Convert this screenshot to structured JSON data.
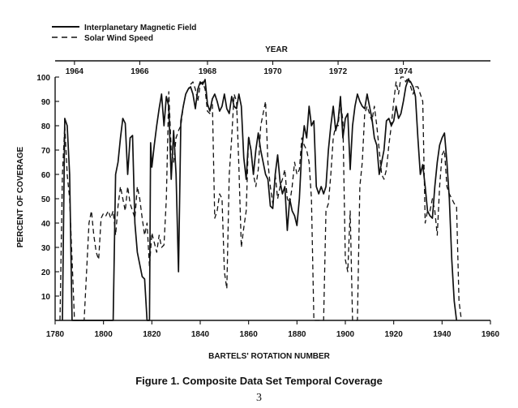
{
  "figure": {
    "caption": "Figure 1.  Composite Data Set Temporal Coverage",
    "page_number": "3"
  },
  "chart_data": {
    "type": "line",
    "xlabel": "BARTELS' ROTATION NUMBER",
    "ylabel": "PERCENT OF COVERAGE",
    "top_axis_title": "YEAR",
    "xlim": [
      1780,
      1960
    ],
    "ylim": [
      0,
      100
    ],
    "x_ticks": [
      1780,
      1800,
      1820,
      1840,
      1860,
      1880,
      1900,
      1920,
      1940,
      1960
    ],
    "y_ticks": [
      10,
      20,
      30,
      40,
      50,
      60,
      70,
      80,
      90,
      100
    ],
    "year_ticks": [
      {
        "label": "1964",
        "x": 1788
      },
      {
        "label": "1966",
        "x": 1815
      },
      {
        "label": "1968",
        "x": 1843
      },
      {
        "label": "1970",
        "x": 1870
      },
      {
        "label": "1972",
        "x": 1897
      },
      {
        "label": "1974",
        "x": 1924
      }
    ],
    "grid": false,
    "legend_position": "top-left",
    "series": [
      {
        "name": "Interplanetary Magnetic Field",
        "style": "solid",
        "points": [
          [
            1783,
            0
          ],
          [
            1784,
            83
          ],
          [
            1785,
            80
          ],
          [
            1786,
            60
          ],
          [
            1787,
            0
          ],
          [
            1804,
            0
          ],
          [
            1805,
            60
          ],
          [
            1806,
            65
          ],
          [
            1807,
            75
          ],
          [
            1808,
            83
          ],
          [
            1809,
            81
          ],
          [
            1810,
            60
          ],
          [
            1811,
            75
          ],
          [
            1812,
            76
          ],
          [
            1813,
            40
          ],
          [
            1814,
            28
          ],
          [
            1815,
            23
          ],
          [
            1816,
            18
          ],
          [
            1817,
            17
          ],
          [
            1818,
            0
          ],
          [
            1819,
            0
          ],
          [
            1819.5,
            73
          ],
          [
            1820,
            63
          ],
          [
            1821,
            72
          ],
          [
            1822,
            80
          ],
          [
            1823,
            87
          ],
          [
            1824,
            93
          ],
          [
            1825,
            80
          ],
          [
            1826,
            92
          ],
          [
            1827,
            88
          ],
          [
            1828,
            58
          ],
          [
            1829,
            78
          ],
          [
            1830,
            60
          ],
          [
            1831,
            20
          ],
          [
            1832,
            82
          ],
          [
            1833,
            88
          ],
          [
            1834,
            93
          ],
          [
            1835,
            95
          ],
          [
            1836,
            96
          ],
          [
            1837,
            93
          ],
          [
            1838,
            87
          ],
          [
            1839,
            95
          ],
          [
            1840,
            98
          ],
          [
            1841,
            97
          ],
          [
            1842,
            99
          ],
          [
            1843,
            89
          ],
          [
            1844,
            86
          ],
          [
            1845,
            91
          ],
          [
            1846,
            93
          ],
          [
            1847,
            90
          ],
          [
            1848,
            86
          ],
          [
            1849,
            88
          ],
          [
            1850,
            93
          ],
          [
            1851,
            87
          ],
          [
            1852,
            85
          ],
          [
            1853,
            92
          ],
          [
            1854,
            88
          ],
          [
            1855,
            87
          ],
          [
            1856,
            93
          ],
          [
            1857,
            88
          ],
          [
            1858,
            67
          ],
          [
            1859,
            58
          ],
          [
            1860,
            75
          ],
          [
            1861,
            70
          ],
          [
            1862,
            60
          ],
          [
            1863,
            70
          ],
          [
            1864,
            77
          ],
          [
            1865,
            70
          ],
          [
            1866,
            65
          ],
          [
            1867,
            60
          ],
          [
            1868,
            58
          ],
          [
            1869,
            47
          ],
          [
            1870,
            46
          ],
          [
            1871,
            60
          ],
          [
            1872,
            68
          ],
          [
            1873,
            57
          ],
          [
            1874,
            52
          ],
          [
            1875,
            55
          ],
          [
            1876,
            37
          ],
          [
            1877,
            50
          ],
          [
            1878,
            45
          ],
          [
            1879,
            43
          ],
          [
            1880,
            39
          ],
          [
            1881,
            50
          ],
          [
            1882,
            70
          ],
          [
            1883,
            80
          ],
          [
            1884,
            75
          ],
          [
            1885,
            88
          ],
          [
            1886,
            80
          ],
          [
            1887,
            82
          ],
          [
            1888,
            55
          ],
          [
            1889,
            52
          ],
          [
            1890,
            55
          ],
          [
            1891,
            52
          ],
          [
            1892,
            55
          ],
          [
            1893,
            70
          ],
          [
            1894,
            80
          ],
          [
            1895,
            88
          ],
          [
            1896,
            78
          ],
          [
            1897,
            82
          ],
          [
            1898,
            92
          ],
          [
            1899,
            75
          ],
          [
            1900,
            83
          ],
          [
            1901,
            85
          ],
          [
            1902,
            62
          ],
          [
            1903,
            80
          ],
          [
            1904,
            88
          ],
          [
            1905,
            93
          ],
          [
            1906,
            90
          ],
          [
            1907,
            88
          ],
          [
            1908,
            87
          ],
          [
            1909,
            93
          ],
          [
            1910,
            88
          ],
          [
            1911,
            83
          ],
          [
            1912,
            75
          ],
          [
            1913,
            72
          ],
          [
            1914,
            60
          ],
          [
            1915,
            65
          ],
          [
            1916,
            70
          ],
          [
            1917,
            82
          ],
          [
            1918,
            83
          ],
          [
            1919,
            80
          ],
          [
            1920,
            82
          ],
          [
            1921,
            88
          ],
          [
            1922,
            83
          ],
          [
            1923,
            85
          ],
          [
            1924,
            90
          ],
          [
            1925,
            96
          ],
          [
            1926,
            99
          ],
          [
            1927,
            98
          ],
          [
            1928,
            96
          ],
          [
            1929,
            92
          ],
          [
            1930,
            75
          ],
          [
            1931,
            60
          ],
          [
            1932,
            64
          ],
          [
            1933,
            55
          ],
          [
            1934,
            45
          ],
          [
            1935,
            43
          ],
          [
            1936,
            42
          ],
          [
            1937,
            55
          ],
          [
            1938,
            65
          ],
          [
            1939,
            72
          ],
          [
            1940,
            75
          ],
          [
            1941,
            77
          ],
          [
            1942,
            65
          ],
          [
            1943,
            50
          ],
          [
            1944,
            25
          ],
          [
            1945,
            8
          ],
          [
            1946,
            0
          ]
        ]
      },
      {
        "name": "Solar Wind Speed",
        "style": "dashed",
        "points": [
          [
            1782,
            0
          ],
          [
            1783,
            60
          ],
          [
            1784,
            80
          ],
          [
            1785,
            60
          ],
          [
            1786,
            50
          ],
          [
            1787,
            25
          ],
          [
            1788,
            0
          ],
          [
            1792,
            0
          ],
          [
            1793,
            20
          ],
          [
            1794,
            40
          ],
          [
            1795,
            45
          ],
          [
            1796,
            35
          ],
          [
            1797,
            28
          ],
          [
            1798,
            25
          ],
          [
            1799,
            42
          ],
          [
            1800,
            44
          ],
          [
            1801,
            43
          ],
          [
            1802,
            45
          ],
          [
            1803,
            42
          ],
          [
            1804,
            45
          ],
          [
            1805,
            35
          ],
          [
            1806,
            47
          ],
          [
            1807,
            55
          ],
          [
            1808,
            50
          ],
          [
            1809,
            45
          ],
          [
            1810,
            55
          ],
          [
            1811,
            48
          ],
          [
            1812,
            45
          ],
          [
            1813,
            42
          ],
          [
            1814,
            55
          ],
          [
            1815,
            50
          ],
          [
            1816,
            42
          ],
          [
            1817,
            35
          ],
          [
            1818,
            40
          ],
          [
            1819,
            22
          ],
          [
            1820,
            36
          ],
          [
            1821,
            32
          ],
          [
            1822,
            28
          ],
          [
            1823,
            35
          ],
          [
            1824,
            30
          ],
          [
            1825,
            31
          ],
          [
            1826,
            50
          ],
          [
            1827,
            94
          ],
          [
            1828,
            70
          ],
          [
            1829,
            65
          ],
          [
            1830,
            75
          ],
          [
            1831,
            78
          ],
          [
            1832,
            80
          ],
          [
            1833,
            88
          ],
          [
            1834,
            93
          ],
          [
            1835,
            95
          ],
          [
            1836,
            97
          ],
          [
            1837,
            98
          ],
          [
            1838,
            95
          ],
          [
            1839,
            90
          ],
          [
            1840,
            97
          ],
          [
            1841,
            98
          ],
          [
            1842,
            95
          ],
          [
            1843,
            86
          ],
          [
            1844,
            85
          ],
          [
            1845,
            91
          ],
          [
            1846,
            42
          ],
          [
            1847,
            45
          ],
          [
            1848,
            52
          ],
          [
            1849,
            50
          ],
          [
            1850,
            20
          ],
          [
            1851,
            13
          ],
          [
            1852,
            60
          ],
          [
            1853,
            75
          ],
          [
            1854,
            93
          ],
          [
            1855,
            90
          ],
          [
            1856,
            63
          ],
          [
            1857,
            30
          ],
          [
            1858,
            38
          ],
          [
            1859,
            45
          ],
          [
            1860,
            76
          ],
          [
            1861,
            70
          ],
          [
            1862,
            60
          ],
          [
            1863,
            55
          ],
          [
            1864,
            62
          ],
          [
            1865,
            80
          ],
          [
            1866,
            85
          ],
          [
            1867,
            90
          ],
          [
            1868,
            65
          ],
          [
            1869,
            55
          ],
          [
            1870,
            48
          ],
          [
            1871,
            60
          ],
          [
            1872,
            50
          ],
          [
            1873,
            55
          ],
          [
            1874,
            58
          ],
          [
            1875,
            62
          ],
          [
            1876,
            50
          ],
          [
            1877,
            48
          ],
          [
            1878,
            55
          ],
          [
            1879,
            65
          ],
          [
            1880,
            60
          ],
          [
            1881,
            62
          ],
          [
            1882,
            75
          ],
          [
            1883,
            72
          ],
          [
            1884,
            70
          ],
          [
            1885,
            65
          ],
          [
            1886,
            50
          ],
          [
            1887,
            0
          ],
          [
            1891,
            0
          ],
          [
            1892,
            45
          ],
          [
            1893,
            48
          ],
          [
            1894,
            60
          ],
          [
            1895,
            75
          ],
          [
            1896,
            80
          ],
          [
            1897,
            80
          ],
          [
            1898,
            90
          ],
          [
            1899,
            82
          ],
          [
            1900,
            25
          ],
          [
            1901,
            20
          ],
          [
            1902,
            45
          ],
          [
            1903,
            0
          ],
          [
            1905,
            0
          ],
          [
            1906,
            55
          ],
          [
            1907,
            65
          ],
          [
            1908,
            85
          ],
          [
            1909,
            88
          ],
          [
            1910,
            85
          ],
          [
            1911,
            82
          ],
          [
            1912,
            88
          ],
          [
            1913,
            80
          ],
          [
            1914,
            70
          ],
          [
            1915,
            60
          ],
          [
            1916,
            58
          ],
          [
            1917,
            62
          ],
          [
            1918,
            72
          ],
          [
            1919,
            80
          ],
          [
            1920,
            90
          ],
          [
            1921,
            98
          ],
          [
            1922,
            93
          ],
          [
            1923,
            100
          ],
          [
            1924,
            100
          ],
          [
            1925,
            98
          ],
          [
            1926,
            100
          ],
          [
            1927,
            96
          ],
          [
            1928,
            93
          ],
          [
            1929,
            96
          ],
          [
            1930,
            96
          ],
          [
            1931,
            93
          ],
          [
            1932,
            90
          ],
          [
            1933,
            40
          ],
          [
            1934,
            45
          ],
          [
            1935,
            45
          ],
          [
            1936,
            50
          ],
          [
            1937,
            45
          ],
          [
            1938,
            35
          ],
          [
            1939,
            55
          ],
          [
            1940,
            68
          ],
          [
            1941,
            70
          ],
          [
            1942,
            55
          ],
          [
            1943,
            52
          ],
          [
            1944,
            50
          ],
          [
            1945,
            48
          ],
          [
            1946,
            47
          ],
          [
            1947,
            8
          ],
          [
            1948,
            0
          ]
        ]
      }
    ]
  }
}
